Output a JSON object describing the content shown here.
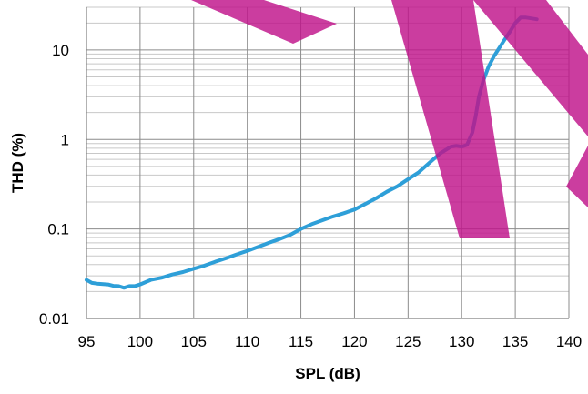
{
  "chart_data": {
    "type": "line",
    "title": "",
    "xlabel": "SPL (dB)",
    "ylabel": "THD (%)",
    "xlim": [
      95,
      140
    ],
    "ylim": [
      0.01,
      30
    ],
    "yscale": "log",
    "grid": true,
    "legend": "none",
    "x_ticks": [
      "95",
      "100",
      "105",
      "110",
      "115",
      "120",
      "125",
      "130",
      "135",
      "140"
    ],
    "x_tick_values": [
      95,
      100,
      105,
      110,
      115,
      120,
      125,
      130,
      135,
      140
    ],
    "y_ticks": [
      "0.01",
      "0.1",
      "1",
      "10"
    ],
    "y_tick_values": [
      0.01,
      0.1,
      1,
      10
    ],
    "series": [
      {
        "color": "#2e9fd8",
        "x": [
          95,
          95.5,
          96,
          97,
          97.5,
          98,
          98.5,
          99,
          99.5,
          100,
          101,
          102,
          103,
          104,
          105,
          106,
          107,
          108,
          109,
          110,
          111,
          112,
          113,
          114,
          115,
          116,
          117,
          118,
          119,
          120,
          121,
          122,
          123,
          124,
          125,
          126,
          127,
          128,
          129,
          129.5,
          130,
          130.5,
          131,
          131.3,
          131.6,
          132,
          132.5,
          133,
          133.5,
          134,
          134.5,
          135,
          135.5,
          136,
          137
        ],
        "y": [
          0.027,
          0.025,
          0.0245,
          0.024,
          0.0232,
          0.023,
          0.022,
          0.023,
          0.023,
          0.024,
          0.027,
          0.0285,
          0.031,
          0.033,
          0.036,
          0.039,
          0.043,
          0.047,
          0.052,
          0.057,
          0.063,
          0.07,
          0.077,
          0.086,
          0.1,
          0.113,
          0.125,
          0.138,
          0.15,
          0.165,
          0.19,
          0.22,
          0.26,
          0.3,
          0.36,
          0.43,
          0.55,
          0.7,
          0.83,
          0.85,
          0.83,
          0.87,
          1.2,
          1.8,
          3.0,
          4.5,
          6.5,
          8.5,
          10.5,
          13,
          16,
          20,
          23,
          23,
          22
        ]
      }
    ]
  }
}
